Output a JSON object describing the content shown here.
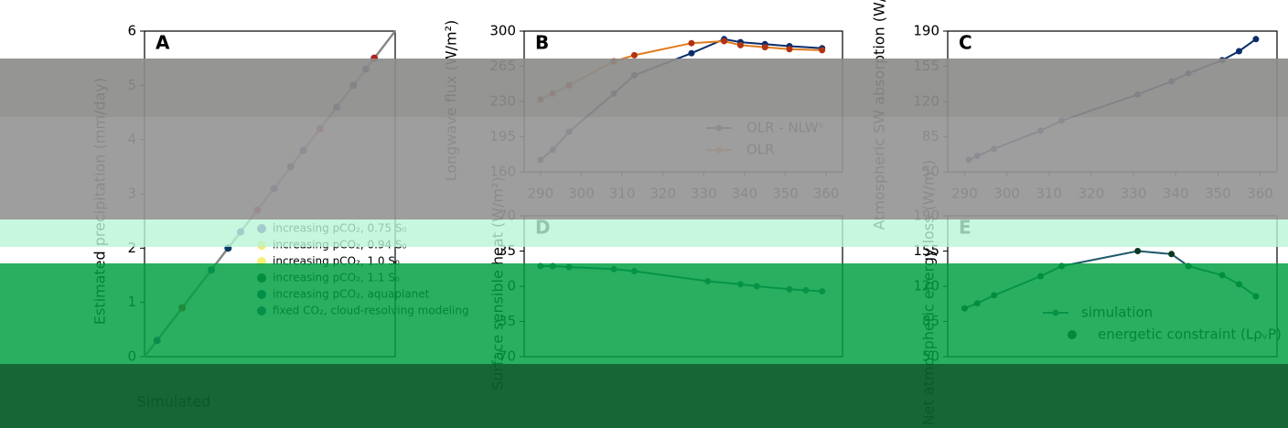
{
  "chart_data": [
    {
      "panel": "A",
      "type": "scatter",
      "ylabel": "Estimated precipitation (mm/day)",
      "xlabel": "Simulated",
      "ylim": [
        0,
        6
      ],
      "xlim": [
        0,
        6
      ],
      "yticks": [
        "0",
        "1",
        "2",
        "3",
        "4",
        "5",
        "6"
      ],
      "legend": {
        "placement": "lower-right",
        "entries": [
          "increasing pCO₂, 0.75 S₀",
          "increasing pCO₂, 0.94 S₀",
          "increasing pCO₂, 1.0 S₀",
          "increasing pCO₂, 1.1 S₀",
          "increasing pCO₂, aquaplanet",
          "fixed CO₂, cloud-resolving modeling"
        ]
      },
      "points": [
        [
          0.3,
          0.3
        ],
        [
          0.9,
          0.9
        ],
        [
          1.6,
          1.6
        ],
        [
          2.0,
          2.0
        ],
        [
          2.3,
          2.3
        ],
        [
          2.7,
          2.7
        ],
        [
          3.1,
          3.1
        ],
        [
          3.5,
          3.5
        ],
        [
          3.8,
          3.8
        ],
        [
          4.2,
          4.2
        ],
        [
          4.6,
          4.6
        ],
        [
          5.0,
          5.0
        ],
        [
          5.3,
          5.3
        ],
        [
          5.5,
          5.5
        ]
      ]
    },
    {
      "panel": "B",
      "type": "line",
      "ylabel": "Longwave flux (W/m²)",
      "ylim": [
        160,
        300
      ],
      "yticks": [
        "160",
        "195",
        "230",
        "265",
        "300"
      ],
      "xticks": [
        "290",
        "300",
        "310",
        "320",
        "330",
        "340",
        "350",
        "360"
      ],
      "legend": {
        "placement": "lower-right",
        "entries": [
          "OLR - NLWˢ",
          "OLR"
        ]
      },
      "series": [
        {
          "name": "OLR - NLWˢ",
          "color": "#0b2d6b",
          "x": [
            290,
            293,
            297,
            308,
            313,
            327,
            335,
            339,
            345,
            351,
            359
          ],
          "y": [
            172,
            182,
            200,
            238,
            256,
            278,
            292,
            289,
            287,
            285,
            283
          ]
        },
        {
          "name": "OLR",
          "color": "#e07b1d",
          "x": [
            290,
            293,
            297,
            308,
            313,
            327,
            335,
            339,
            345,
            351,
            359
          ],
          "y": [
            232,
            238,
            246,
            270,
            276,
            288,
            290,
            286,
            284,
            282,
            281
          ]
        }
      ]
    },
    {
      "panel": "C",
      "type": "line",
      "ylabel": "Atmospheric SW absorption (W/m²)",
      "ylim": [
        50,
        190
      ],
      "yticks": [
        "50",
        "85",
        "120",
        "155",
        "190"
      ],
      "xticks": [
        "290",
        "300",
        "310",
        "320",
        "330",
        "340",
        "350",
        "360"
      ],
      "series": [
        {
          "color": "#0b2d6b",
          "x": [
            291,
            293,
            297,
            308,
            313,
            331,
            339,
            343,
            351,
            355,
            359
          ],
          "y": [
            62,
            66,
            73,
            91,
            101,
            127,
            140,
            148,
            161,
            170,
            182
          ]
        }
      ]
    },
    {
      "panel": "D",
      "type": "line",
      "ylabel": "Surface sensible heat (W/m²)",
      "ylim": [
        -70,
        70
      ],
      "yticks": [
        "-70",
        "-35",
        "0",
        "35",
        "70"
      ],
      "series": [
        {
          "color": "#1f5a6b",
          "x": [
            290,
            293,
            297,
            308,
            313,
            331,
            339,
            343,
            351,
            355,
            359
          ],
          "y": [
            20,
            20,
            19,
            17,
            15,
            5,
            2,
            0,
            -3,
            -4,
            -5
          ]
        }
      ]
    },
    {
      "panel": "E",
      "type": "line",
      "ylabel": "Net atmospheric energy loss (W/m²)",
      "ylim": [
        50,
        190
      ],
      "yticks": [
        "50",
        "85",
        "120",
        "155",
        "190"
      ],
      "legend": {
        "placement": "lower-right",
        "entries": [
          "simulation",
          "energetic constraint (LρᵥP)"
        ]
      },
      "series": [
        {
          "name": "simulation",
          "color": "#1f5a6b",
          "x": [
            290,
            293,
            297,
            308,
            313,
            331,
            339,
            343,
            351,
            355,
            359
          ],
          "y": [
            98,
            103,
            111,
            130,
            140,
            155,
            152,
            140,
            131,
            122,
            110
          ]
        }
      ]
    }
  ]
}
